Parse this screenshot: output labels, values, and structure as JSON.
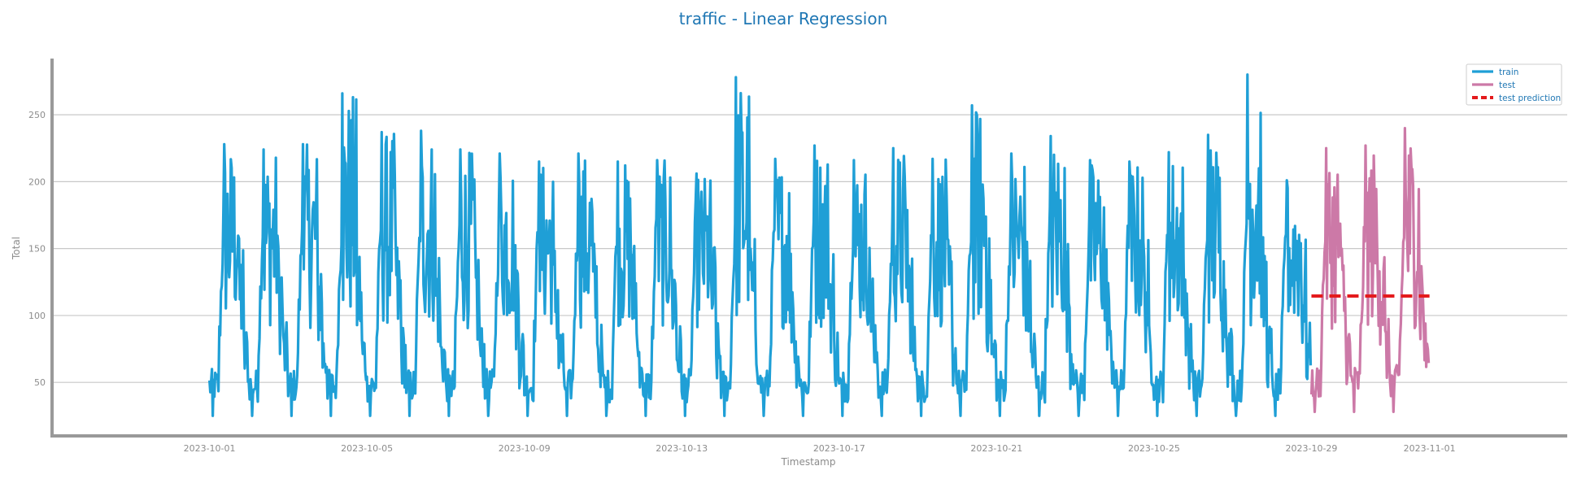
{
  "chart_data": {
    "type": "line",
    "title": "traffic - Linear Regression",
    "xlabel": "Timestamp",
    "ylabel": "Total",
    "x_range": [
      "2023-09-27T00:00",
      "2023-11-04T12:00"
    ],
    "ylim": [
      10,
      292
    ],
    "yticks": [
      50,
      100,
      150,
      200,
      250
    ],
    "xticks": [
      "2023-10-01",
      "2023-10-05",
      "2023-10-09",
      "2023-10-13",
      "2023-10-17",
      "2023-10-21",
      "2023-10-25",
      "2023-10-29",
      "2023-11-01"
    ],
    "grid": "y",
    "legend_position": "top-right",
    "colors": {
      "train": "#1f9fd6",
      "test": "#cc79a7",
      "prediction": "#e41a1c",
      "text": "#1f77b4",
      "tick": "#8c8c8c",
      "axis": "#999999",
      "grid": "#c8c8c8"
    },
    "series": [
      {
        "name": "train",
        "start": "2023-10-01T00:00",
        "end": "2023-10-29T00:00",
        "daily_peaks": [
          228,
          224,
          228,
          266,
          237,
          238,
          224,
          221,
          215,
          221,
          215,
          216,
          206,
          278,
          217,
          227,
          216,
          225,
          217,
          257,
          221,
          234,
          216,
          215,
          222,
          235,
          280,
          201
        ],
        "night_min": 25
      },
      {
        "name": "test",
        "start": "2023-10-29T00:00",
        "end": "2023-11-01T00:00",
        "daily_peaks": [
          225,
          227,
          240
        ],
        "night_min": 28
      },
      {
        "name": "test prediction",
        "start": "2023-10-29T00:00",
        "end": "2023-11-01T00:00",
        "value": 114.5
      }
    ]
  }
}
